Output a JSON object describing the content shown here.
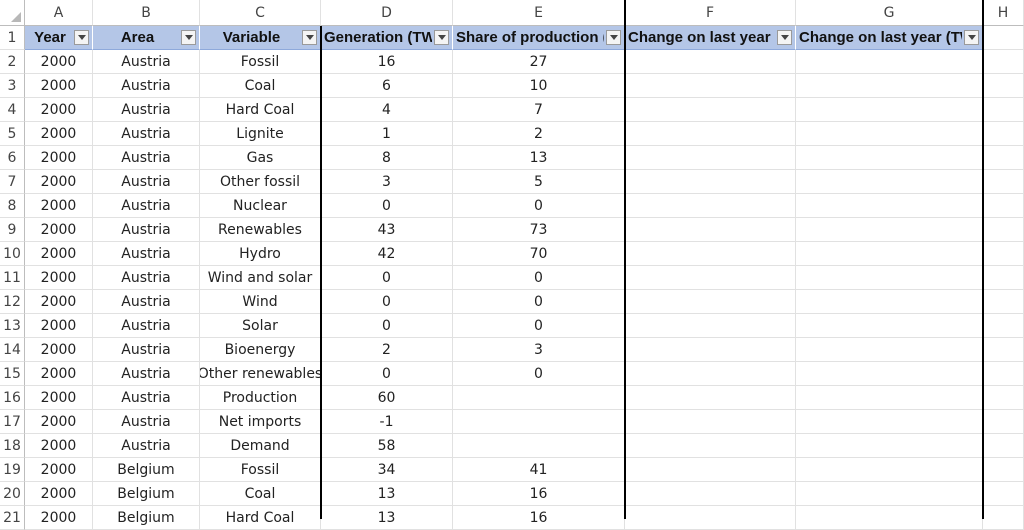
{
  "columns": [
    "A",
    "B",
    "C",
    "D",
    "E",
    "F",
    "G",
    "H"
  ],
  "headers": [
    {
      "label": "Year"
    },
    {
      "label": "Area"
    },
    {
      "label": "Variable"
    },
    {
      "label": "Generation (TWh)"
    },
    {
      "label": "Share of production (%)"
    },
    {
      "label": "Change on last year (%)"
    },
    {
      "label": "Change on last year (TWh)"
    }
  ],
  "rows": [
    {
      "n": "2",
      "year": "2000",
      "area": "Austria",
      "variable": "Fossil",
      "gen": "16",
      "share": "27"
    },
    {
      "n": "3",
      "year": "2000",
      "area": "Austria",
      "variable": "Coal",
      "gen": "6",
      "share": "10"
    },
    {
      "n": "4",
      "year": "2000",
      "area": "Austria",
      "variable": "Hard Coal",
      "gen": "4",
      "share": "7"
    },
    {
      "n": "5",
      "year": "2000",
      "area": "Austria",
      "variable": "Lignite",
      "gen": "1",
      "share": "2"
    },
    {
      "n": "6",
      "year": "2000",
      "area": "Austria",
      "variable": "Gas",
      "gen": "8",
      "share": "13"
    },
    {
      "n": "7",
      "year": "2000",
      "area": "Austria",
      "variable": "Other fossil",
      "gen": "3",
      "share": "5"
    },
    {
      "n": "8",
      "year": "2000",
      "area": "Austria",
      "variable": "Nuclear",
      "gen": "0",
      "share": "0"
    },
    {
      "n": "9",
      "year": "2000",
      "area": "Austria",
      "variable": "Renewables",
      "gen": "43",
      "share": "73"
    },
    {
      "n": "10",
      "year": "2000",
      "area": "Austria",
      "variable": "Hydro",
      "gen": "42",
      "share": "70"
    },
    {
      "n": "11",
      "year": "2000",
      "area": "Austria",
      "variable": "Wind and solar",
      "gen": "0",
      "share": "0"
    },
    {
      "n": "12",
      "year": "2000",
      "area": "Austria",
      "variable": "Wind",
      "gen": "0",
      "share": "0"
    },
    {
      "n": "13",
      "year": "2000",
      "area": "Austria",
      "variable": "Solar",
      "gen": "0",
      "share": "0"
    },
    {
      "n": "14",
      "year": "2000",
      "area": "Austria",
      "variable": "Bioenergy",
      "gen": "2",
      "share": "3"
    },
    {
      "n": "15",
      "year": "2000",
      "area": "Austria",
      "variable": "Other renewables",
      "gen": "0",
      "share": "0"
    },
    {
      "n": "16",
      "year": "2000",
      "area": "Austria",
      "variable": "Production",
      "gen": "60",
      "share": ""
    },
    {
      "n": "17",
      "year": "2000",
      "area": "Austria",
      "variable": "Net imports",
      "gen": "-1",
      "share": ""
    },
    {
      "n": "18",
      "year": "2000",
      "area": "Austria",
      "variable": "Demand",
      "gen": "58",
      "share": ""
    },
    {
      "n": "19",
      "year": "2000",
      "area": "Belgium",
      "variable": "Fossil",
      "gen": "34",
      "share": "41"
    },
    {
      "n": "20",
      "year": "2000",
      "area": "Belgium",
      "variable": "Coal",
      "gen": "13",
      "share": "16"
    },
    {
      "n": "21",
      "year": "2000",
      "area": "Belgium",
      "variable": "Hard Coal",
      "gen": "13",
      "share": "16"
    }
  ],
  "header_row_number": "1",
  "colors": {
    "header_fill": "#b4c6e7",
    "grid": "#e1e1e1",
    "border": "#000000"
  }
}
